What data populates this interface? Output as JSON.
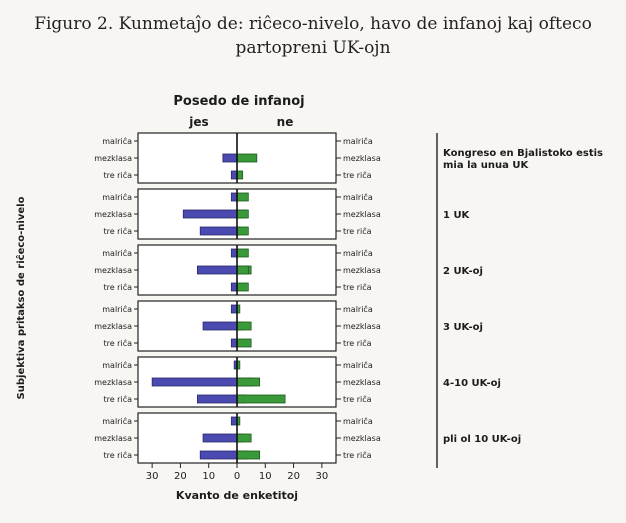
{
  "figure": {
    "title_line1": "Figuro 2. Kunmetaĵo de: riĉeco-nivelo, havo de infanoj kaj ofteco",
    "title_line2": "partopreni UK-ojn"
  },
  "chart_data": {
    "type": "bar",
    "subtype": "back-to-back horizontal bar (population pyramid) panels",
    "title": "Posedo de infanoj",
    "left_group_label": "jes",
    "right_group_label": "ne",
    "xlabel": "Kvanto de enketitoj",
    "ylabel": "Subjektiva pritakso de riĉeco-nivelo",
    "xlim": [
      -35,
      35
    ],
    "x_ticks": [
      -30,
      -20,
      -10,
      0,
      10,
      20,
      30
    ],
    "x_tick_labels": [
      "30",
      "20",
      "10",
      "0",
      "10",
      "20",
      "30"
    ],
    "categories": [
      "malriĉa",
      "mezklasa",
      "tre riĉa"
    ],
    "colors": {
      "jes": "#4a4ab0",
      "ne": "#3a9a3a"
    },
    "panels": [
      {
        "label": "Kongreso en Bjalistoko estis mia la unua UK",
        "segments": [
          [
            [
              0,
              0
            ]
          ],
          [
            [
              5,
              0
            ],
            [
              0,
              7
            ]
          ],
          [
            [
              2,
              0
            ],
            [
              0,
              2
            ]
          ]
        ],
        "jes": [
          0,
          5,
          2
        ],
        "ne": [
          0,
          7,
          2
        ]
      },
      {
        "label": "1 UK",
        "segments": [
          [
            [
              2,
              0
            ],
            [
              0,
              4
            ]
          ],
          [
            [
              19,
              3
            ],
            [
              0,
              4
            ]
          ],
          [
            [
              13,
              1
            ],
            [
              0,
              4
            ]
          ]
        ],
        "jes": [
          2,
          19,
          13
        ],
        "ne": [
          4,
          4,
          4
        ]
      },
      {
        "label": "2 UK-oj",
        "segments": [
          [
            [
              2,
              0
            ],
            [
              0,
              4
            ]
          ],
          [
            [
              14,
              5
            ],
            [
              0,
              4
            ]
          ],
          [
            [
              2,
              0
            ],
            [
              0,
              4
            ]
          ]
        ],
        "jes": [
          2,
          14,
          2
        ],
        "ne": [
          4,
          4,
          4
        ]
      },
      {
        "label": "3 UK-oj",
        "segments": [
          [
            [
              2,
              0
            ],
            [
              0,
              1
            ]
          ],
          [
            [
              12,
              2
            ],
            [
              0,
              5
            ]
          ],
          [
            [
              2,
              0
            ],
            [
              0,
              5
            ]
          ]
        ],
        "jes": [
          2,
          12,
          2
        ],
        "ne": [
          1,
          5,
          5
        ]
      },
      {
        "label": "4-10 UK-oj",
        "segments": [
          [
            [
              1,
              0
            ],
            [
              0,
              1
            ]
          ],
          [
            [
              30,
              6
            ],
            [
              0,
              8
            ]
          ],
          [
            [
              14,
              3
            ],
            [
              0,
              17
            ]
          ]
        ],
        "jes": [
          1,
          30,
          14
        ],
        "ne": [
          1,
          8,
          17
        ]
      },
      {
        "label": "pli ol 10 UK-oj",
        "segments": [
          [
            [
              2,
              0
            ],
            [
              0,
              1
            ]
          ],
          [
            [
              12,
              2
            ],
            [
              0,
              5
            ]
          ],
          [
            [
              13,
              4
            ],
            [
              0,
              8
            ]
          ]
        ],
        "jes": [
          2,
          12,
          13
        ],
        "ne": [
          1,
          5,
          8
        ]
      }
    ]
  }
}
